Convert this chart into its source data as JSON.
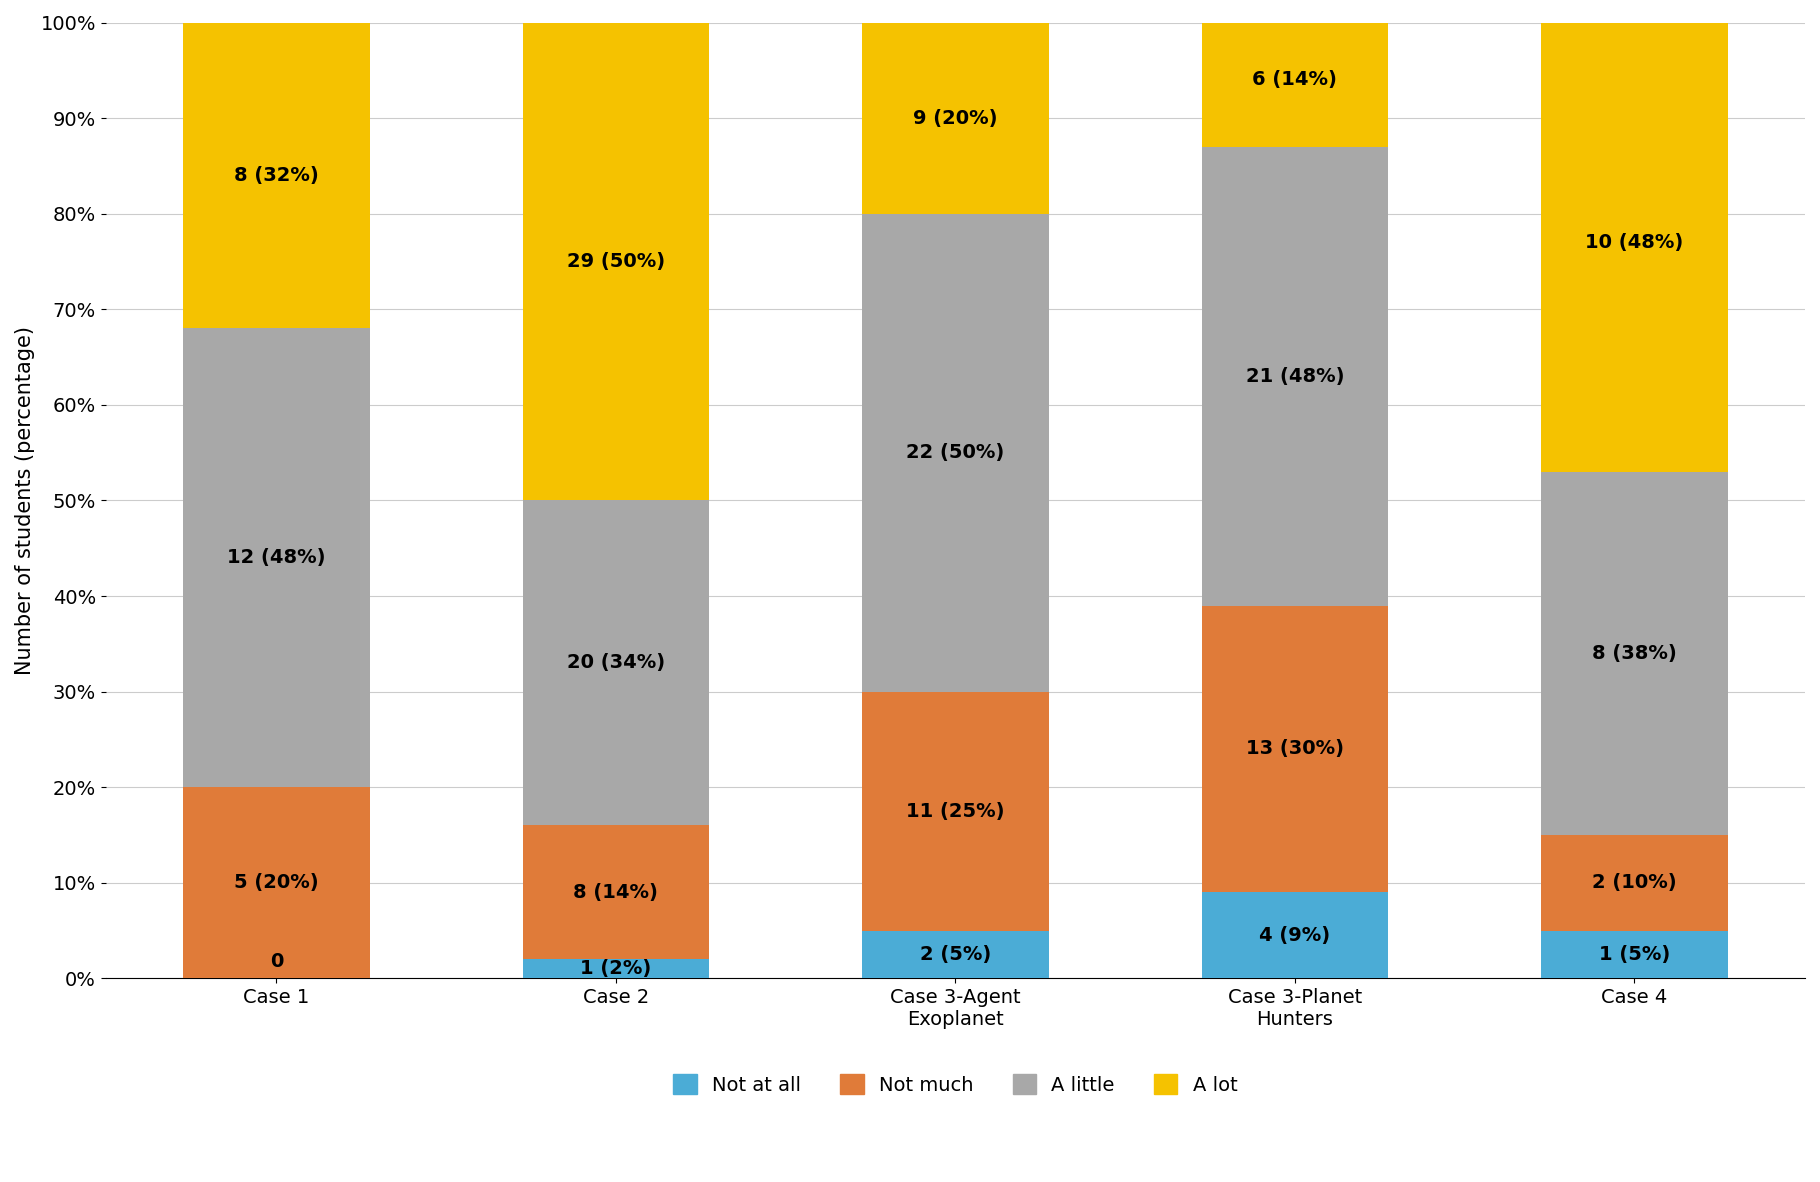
{
  "categories": [
    "Case 1",
    "Case 2",
    "Case 3-Agent\nExoplanet",
    "Case 3-Planet\nHunters",
    "Case 4"
  ],
  "not_at_all": {
    "values": [
      0,
      1,
      2,
      4,
      1
    ],
    "pcts": [
      0,
      2,
      5,
      9,
      5
    ],
    "color": "#4BACD6"
  },
  "not_much": {
    "values": [
      5,
      8,
      11,
      13,
      2
    ],
    "pcts": [
      20,
      14,
      25,
      30,
      10
    ],
    "color": "#E07B39"
  },
  "a_little": {
    "values": [
      12,
      20,
      22,
      21,
      8
    ],
    "pcts": [
      48,
      34,
      50,
      48,
      38
    ],
    "color": "#A8A8A8"
  },
  "a_lot": {
    "values": [
      8,
      29,
      9,
      6,
      10
    ],
    "pcts": [
      32,
      50,
      20,
      14,
      48
    ],
    "color": "#F5C200"
  },
  "ylabel": "Number of students (percentage)",
  "ylim": [
    0,
    100
  ],
  "yticks": [
    0,
    10,
    20,
    30,
    40,
    50,
    60,
    70,
    80,
    90,
    100
  ],
  "ytick_labels": [
    "0%",
    "10%",
    "20%",
    "30%",
    "40%",
    "50%",
    "60%",
    "70%",
    "80%",
    "90%",
    "100%"
  ],
  "legend_labels": [
    "Not at all",
    "Not much",
    "A little",
    "A lot"
  ],
  "bar_width": 0.55,
  "label_fontsize": 14,
  "tick_fontsize": 14,
  "legend_fontsize": 14,
  "ylabel_fontsize": 15,
  "zero_label": "0"
}
